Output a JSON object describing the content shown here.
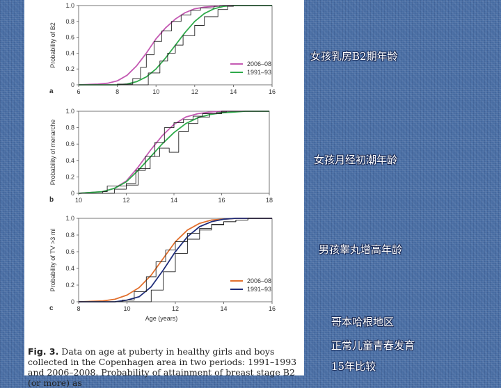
{
  "slide": {
    "annotations": [
      "女孩乳房B2期年龄",
      "女孩月经初潮年龄",
      "男孩睾丸增高年龄",
      "哥本哈根地区",
      "正常儿童青春发育",
      "15年比较"
    ]
  },
  "caption": {
    "fig_label": "Fig. 3.",
    "text": " Data on age at puberty in healthy girls and boys collected in the Copenhagen area in two periods: 1991–1993 and 2006–2008. Probability of attainment of breast stage B2 (or more) as"
  },
  "colors": {
    "pink": "#c45ab3",
    "green": "#2eaa4a",
    "orange": "#e2702e",
    "navy": "#1f2d7a",
    "step": "#222222"
  },
  "chart_data": [
    {
      "type": "line",
      "panel": "a",
      "ylabel": "Probability of B2",
      "xlabel": "",
      "xlim": [
        6,
        16
      ],
      "ylim": [
        0,
        1
      ],
      "xticks": [
        "6",
        "8",
        "10",
        "12",
        "14",
        "16"
      ],
      "yticks": [
        "0",
        "0.2",
        "0.4",
        "0.6",
        "0.8",
        "1.0"
      ],
      "legend_position": "center-right",
      "series": [
        {
          "name": "2006–08",
          "color": "pink",
          "x": [
            6,
            7,
            7.5,
            8,
            8.5,
            9,
            9.5,
            10,
            10.5,
            11,
            11.5,
            12,
            12.5,
            13,
            13.5,
            14,
            16
          ],
          "y": [
            0,
            0.01,
            0.02,
            0.05,
            0.12,
            0.24,
            0.4,
            0.58,
            0.72,
            0.83,
            0.91,
            0.96,
            0.98,
            0.99,
            1.0,
            1.0,
            1.0
          ]
        },
        {
          "name": "1991–93",
          "color": "green",
          "x": [
            6,
            8,
            8.5,
            9,
            9.5,
            10,
            10.5,
            11,
            11.5,
            12,
            12.5,
            13,
            13.5,
            14,
            16
          ],
          "y": [
            0,
            0,
            0.01,
            0.04,
            0.1,
            0.2,
            0.34,
            0.5,
            0.66,
            0.8,
            0.9,
            0.96,
            0.99,
            1.0,
            1.0
          ]
        },
        {
          "name": "",
          "color": "step",
          "x": [
            6,
            8,
            8.8,
            9.2,
            9.5,
            9.9,
            10.3,
            10.8,
            11.3,
            11.8,
            12.3,
            13,
            13.3,
            16
          ],
          "y": [
            0,
            0.01,
            0.08,
            0.22,
            0.38,
            0.55,
            0.68,
            0.8,
            0.88,
            0.94,
            0.97,
            0.99,
            1.0,
            1.0
          ]
        },
        {
          "name": "",
          "color": "step",
          "x": [
            6,
            9.2,
            9.6,
            10.2,
            10.6,
            11,
            11.4,
            12,
            12.5,
            13.2,
            13.7,
            14,
            16
          ],
          "y": [
            0,
            0,
            0.15,
            0.3,
            0.4,
            0.5,
            0.62,
            0.75,
            0.86,
            0.95,
            0.99,
            1.0,
            1.0
          ]
        }
      ]
    },
    {
      "type": "line",
      "panel": "b",
      "ylabel": "Probability of menarche",
      "xlabel": "",
      "xlim": [
        10,
        18
      ],
      "ylim": [
        0,
        1
      ],
      "xticks": [
        "10",
        "12",
        "14",
        "16",
        "18"
      ],
      "yticks": [
        "0",
        "0.2",
        "0.4",
        "0.6",
        "0.8",
        "1.0"
      ],
      "series": [
        {
          "name": "",
          "color": "pink",
          "x": [
            10,
            11,
            11.5,
            12,
            12.5,
            13,
            13.5,
            14,
            14.5,
            15,
            15.5,
            16,
            18
          ],
          "y": [
            0,
            0.02,
            0.06,
            0.15,
            0.32,
            0.52,
            0.7,
            0.84,
            0.93,
            0.97,
            0.99,
            1.0,
            1.0
          ]
        },
        {
          "name": "",
          "color": "green",
          "x": [
            10,
            11,
            11.5,
            12,
            12.5,
            13,
            13.5,
            14,
            14.5,
            15,
            15.5,
            16,
            16.5,
            17,
            18
          ],
          "y": [
            0,
            0.02,
            0.06,
            0.14,
            0.28,
            0.44,
            0.6,
            0.74,
            0.85,
            0.92,
            0.96,
            0.98,
            0.99,
            1.0,
            1.0
          ]
        },
        {
          "name": "",
          "color": "step",
          "x": [
            10,
            11,
            11.2,
            12,
            12.4,
            12.8,
            13.2,
            13.6,
            14,
            14.4,
            14.8,
            15.2,
            15.8,
            16.2,
            18
          ],
          "y": [
            0,
            0.02,
            0.09,
            0.12,
            0.28,
            0.45,
            0.62,
            0.8,
            0.86,
            0.9,
            0.94,
            0.97,
            0.99,
            1.0,
            1.0
          ]
        },
        {
          "name": "",
          "color": "step",
          "x": [
            10,
            11.5,
            12,
            12.5,
            13,
            13.4,
            13.8,
            14,
            14.2,
            14.6,
            15,
            15.5,
            16,
            18
          ],
          "y": [
            0,
            0.05,
            0.1,
            0.3,
            0.45,
            0.55,
            0.5,
            0.5,
            0.75,
            0.85,
            0.93,
            0.97,
            1.0,
            1.0
          ]
        }
      ]
    },
    {
      "type": "line",
      "panel": "c",
      "ylabel": "Probability of TV >3 ml",
      "xlabel": "Age (years)",
      "xlim": [
        8,
        16
      ],
      "ylim": [
        0,
        1
      ],
      "xticks": [
        "8",
        "10",
        "12",
        "14",
        "16"
      ],
      "yticks": [
        "0",
        "0.2",
        "0.4",
        "0.6",
        "0.8",
        "1.0"
      ],
      "legend_position": "center-right",
      "series": [
        {
          "name": "2006–08",
          "color": "orange",
          "x": [
            8,
            9,
            9.5,
            10,
            10.5,
            11,
            11.5,
            12,
            12.5,
            13,
            13.5,
            14,
            14.5,
            16
          ],
          "y": [
            0,
            0.01,
            0.03,
            0.08,
            0.17,
            0.32,
            0.52,
            0.72,
            0.86,
            0.94,
            0.98,
            0.99,
            1.0,
            1.0
          ]
        },
        {
          "name": "1991–93",
          "color": "navy",
          "x": [
            8,
            9.5,
            10,
            10.5,
            11,
            11.5,
            12,
            12.5,
            13,
            13.5,
            14,
            14.5,
            16
          ],
          "y": [
            0,
            0,
            0.02,
            0.06,
            0.18,
            0.38,
            0.6,
            0.78,
            0.9,
            0.96,
            0.99,
            1.0,
            1.0
          ]
        },
        {
          "name": "",
          "color": "step",
          "x": [
            8,
            9.8,
            10.3,
            10.8,
            11.2,
            11.6,
            12,
            12.5,
            13,
            13.5,
            14,
            14.5,
            15,
            16
          ],
          "y": [
            0,
            0.02,
            0.12,
            0.3,
            0.48,
            0.62,
            0.72,
            0.82,
            0.88,
            0.92,
            0.96,
            0.98,
            1.0,
            1.0
          ]
        },
        {
          "name": "",
          "color": "step",
          "x": [
            8,
            10.5,
            11,
            11.5,
            12,
            12.5,
            13,
            13.5,
            14,
            14.5,
            15,
            16
          ],
          "y": [
            0,
            0,
            0.14,
            0.36,
            0.58,
            0.75,
            0.86,
            0.93,
            0.96,
            0.98,
            1.0,
            1.0
          ]
        }
      ]
    }
  ]
}
